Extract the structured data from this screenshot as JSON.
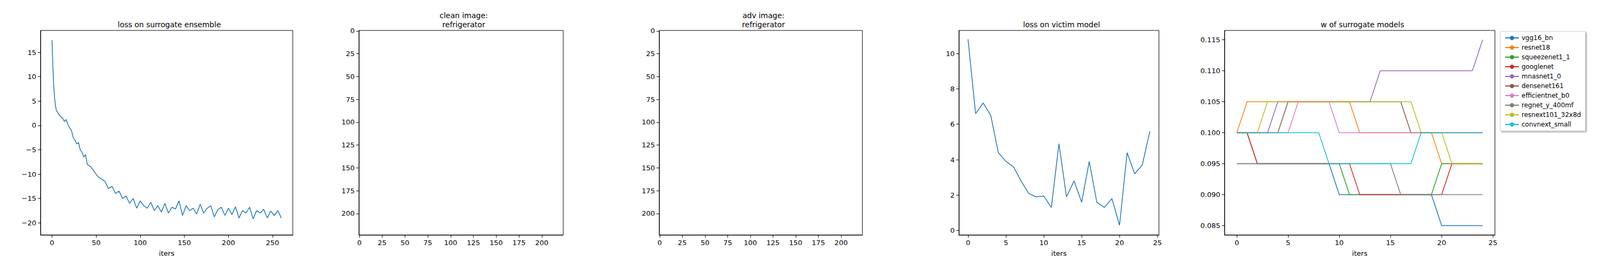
{
  "chart_data": [
    {
      "type": "line",
      "title": "loss on surrogate ensemble",
      "x_label": "iters",
      "x": [
        0,
        1,
        2,
        3,
        4,
        5,
        6,
        8,
        10,
        12,
        14,
        16,
        18,
        20,
        22,
        24,
        26,
        28,
        30,
        32,
        34,
        36,
        38,
        40,
        44,
        48,
        52,
        56,
        60,
        64,
        68,
        72,
        76,
        80,
        84,
        88,
        92,
        96,
        100,
        104,
        108,
        112,
        116,
        120,
        124,
        128,
        132,
        136,
        140,
        144,
        148,
        152,
        156,
        160,
        164,
        168,
        172,
        176,
        180,
        184,
        188,
        192,
        196,
        200,
        204,
        208,
        212,
        216,
        220,
        224,
        228,
        232,
        236,
        240,
        244,
        248,
        252,
        256,
        260
      ],
      "values": [
        17.5,
        12,
        8,
        5.5,
        4,
        3,
        2.8,
        2.2,
        1.8,
        1.5,
        0.8,
        1.2,
        0.2,
        -0.5,
        -1,
        -2.5,
        -3,
        -3.8,
        -3.5,
        -5,
        -5.5,
        -6.5,
        -6,
        -8,
        -8.5,
        -9.5,
        -10.5,
        -11,
        -11.5,
        -13,
        -12.5,
        -14,
        -13.5,
        -15,
        -14.5,
        -16,
        -15,
        -17,
        -15.5,
        -16.5,
        -17,
        -15.8,
        -17.5,
        -16.5,
        -17.8,
        -16,
        -18,
        -16.8,
        -17.2,
        -15.5,
        -18.5,
        -16.5,
        -17.5,
        -17,
        -18.2,
        -16.2,
        -18,
        -17,
        -16.5,
        -18.8,
        -17.3,
        -16.8,
        -18.5,
        -17,
        -18.3,
        -16.7,
        -19,
        -17.5,
        -18,
        -16.8,
        -19.2,
        -17.5,
        -18,
        -17.2,
        -19,
        -17.6,
        -18.5,
        -17.5,
        -19
      ],
      "color": "#1f77b4",
      "xlim": [
        -13,
        273
      ],
      "xticks": [
        0,
        50,
        100,
        150,
        200,
        250
      ],
      "ylim": [
        -22.5,
        19.5
      ],
      "yticks": [
        {
          "value": -20,
          "label": "−20"
        },
        {
          "value": -15,
          "label": "−15"
        },
        {
          "value": -10,
          "label": "−10"
        },
        {
          "value": -5,
          "label": "−5"
        },
        0,
        5,
        10,
        15
      ],
      "grid": false
    },
    {
      "type": "image",
      "title": "clean image:\nrefrigerator",
      "xlim": [
        -0.5,
        223.5
      ],
      "xticks": [
        0,
        25,
        50,
        75,
        100,
        125,
        150,
        175,
        200
      ],
      "ylim": [
        223.5,
        -0.5
      ],
      "yticks": [
        0,
        25,
        50,
        75,
        100,
        125,
        150,
        175,
        200
      ],
      "grid": false
    },
    {
      "type": "image",
      "title": "adv image:\nrefrigerator",
      "xlim": [
        -0.5,
        223.5
      ],
      "xticks": [
        0,
        25,
        50,
        75,
        100,
        125,
        150,
        175,
        200
      ],
      "ylim": [
        223.5,
        -0.5
      ],
      "yticks": [
        0,
        25,
        50,
        75,
        100,
        125,
        150,
        175,
        200
      ],
      "grid": false
    },
    {
      "type": "line",
      "title": "loss on victim model",
      "x_label": "iters",
      "x": [
        0,
        1,
        2,
        3,
        4,
        5,
        6,
        7,
        8,
        9,
        10,
        11,
        12,
        13,
        14,
        15,
        16,
        17,
        18,
        19,
        20,
        21,
        22,
        23,
        24
      ],
      "values": [
        10.8,
        6.6,
        7.2,
        6.5,
        4.4,
        3.9,
        3.6,
        2.8,
        2.1,
        1.9,
        1.95,
        1.3,
        4.9,
        1.9,
        2.8,
        1.6,
        3.9,
        1.6,
        1.3,
        1.8,
        0.3,
        4.4,
        3.2,
        3.7,
        5.6
      ],
      "color": "#1f77b4",
      "xlim": [
        -1.2,
        25.2
      ],
      "xticks": [
        0,
        5,
        10,
        15,
        20,
        25
      ],
      "ylim": [
        -0.25,
        11.3
      ],
      "yticks": [
        0,
        2,
        4,
        6,
        8,
        10
      ],
      "grid": false
    },
    {
      "type": "line",
      "title": "w of surrogate models",
      "x_label": "iters",
      "x": [
        0,
        1,
        2,
        3,
        4,
        5,
        6,
        7,
        8,
        9,
        10,
        11,
        12,
        13,
        14,
        15,
        16,
        17,
        18,
        19,
        20,
        21,
        22,
        23,
        24
      ],
      "series": [
        {
          "name": "vgg16_bn",
          "color": "#1f77b4",
          "values": [
            0.095,
            0.095,
            0.095,
            0.095,
            0.095,
            0.095,
            0.095,
            0.095,
            0.095,
            0.095,
            0.09,
            0.09,
            0.09,
            0.09,
            0.09,
            0.09,
            0.09,
            0.09,
            0.09,
            0.09,
            0.085,
            0.085,
            0.085,
            0.085,
            0.085
          ]
        },
        {
          "name": "resnet18",
          "color": "#ff7f0e",
          "values": [
            0.1,
            0.105,
            0.105,
            0.105,
            0.105,
            0.105,
            0.105,
            0.105,
            0.105,
            0.105,
            0.105,
            0.105,
            0.1,
            0.1,
            0.1,
            0.1,
            0.1,
            0.1,
            0.1,
            0.1,
            0.095,
            0.095,
            0.095,
            0.095,
            0.095
          ]
        },
        {
          "name": "squeezenet1_1",
          "color": "#2ca02c",
          "values": [
            0.1,
            0.1,
            0.095,
            0.095,
            0.095,
            0.095,
            0.095,
            0.095,
            0.095,
            0.095,
            0.095,
            0.09,
            0.09,
            0.09,
            0.09,
            0.09,
            0.09,
            0.09,
            0.09,
            0.09,
            0.095,
            0.095,
            0.095,
            0.095,
            0.095
          ]
        },
        {
          "name": "googlenet",
          "color": "#d62728",
          "values": [
            0.1,
            0.1,
            0.095,
            0.095,
            0.095,
            0.095,
            0.095,
            0.095,
            0.095,
            0.095,
            0.095,
            0.095,
            0.09,
            0.09,
            0.09,
            0.09,
            0.09,
            0.09,
            0.09,
            0.09,
            0.09,
            0.095,
            0.095,
            0.095,
            0.095
          ]
        },
        {
          "name": "mnasnet1_0",
          "color": "#9467bd",
          "values": [
            0.1,
            0.1,
            0.1,
            0.1,
            0.105,
            0.105,
            0.105,
            0.105,
            0.105,
            0.105,
            0.105,
            0.105,
            0.105,
            0.105,
            0.11,
            0.11,
            0.11,
            0.11,
            0.11,
            0.11,
            0.11,
            0.11,
            0.11,
            0.11,
            0.115
          ]
        },
        {
          "name": "densenet161",
          "color": "#8c564b",
          "values": [
            0.1,
            0.1,
            0.1,
            0.1,
            0.1,
            0.105,
            0.105,
            0.105,
            0.105,
            0.105,
            0.105,
            0.105,
            0.105,
            0.105,
            0.105,
            0.105,
            0.105,
            0.1,
            0.1,
            0.1,
            0.1,
            0.1,
            0.1,
            0.1,
            0.1
          ]
        },
        {
          "name": "efficientnet_b0",
          "color": "#e377c2",
          "values": [
            0.1,
            0.1,
            0.1,
            0.1,
            0.1,
            0.1,
            0.105,
            0.105,
            0.105,
            0.105,
            0.1,
            0.1,
            0.1,
            0.1,
            0.1,
            0.1,
            0.1,
            0.1,
            0.1,
            0.1,
            0.1,
            0.1,
            0.1,
            0.1,
            0.1
          ]
        },
        {
          "name": "regnet_y_400mf",
          "color": "#7f7f7f",
          "values": [
            0.095,
            0.095,
            0.095,
            0.095,
            0.095,
            0.095,
            0.095,
            0.095,
            0.095,
            0.095,
            0.095,
            0.095,
            0.095,
            0.095,
            0.095,
            0.095,
            0.09,
            0.09,
            0.09,
            0.09,
            0.09,
            0.09,
            0.09,
            0.09,
            0.09
          ]
        },
        {
          "name": "resnext101_32x8d",
          "color": "#bcbd22",
          "values": [
            0.1,
            0.1,
            0.1,
            0.105,
            0.105,
            0.105,
            0.105,
            0.105,
            0.105,
            0.105,
            0.105,
            0.105,
            0.105,
            0.105,
            0.105,
            0.105,
            0.105,
            0.105,
            0.1,
            0.1,
            0.1,
            0.095,
            0.095,
            0.095,
            0.095
          ]
        },
        {
          "name": "convnext_small",
          "color": "#17becf",
          "values": [
            0.1,
            0.1,
            0.1,
            0.1,
            0.1,
            0.1,
            0.1,
            0.1,
            0.1,
            0.095,
            0.095,
            0.095,
            0.095,
            0.095,
            0.095,
            0.095,
            0.095,
            0.095,
            0.1,
            0.1,
            0.1,
            0.1,
            0.1,
            0.1,
            0.1
          ]
        }
      ],
      "xlim": [
        -1.2,
        25.2
      ],
      "xticks": [
        0,
        5,
        10,
        15,
        20,
        25
      ],
      "ylim": [
        0.0835,
        0.1165
      ],
      "yticks": [
        0.085,
        {
          "value": 0.09,
          "label": "0.090"
        },
        0.095,
        {
          "value": 0.1,
          "label": "0.100"
        },
        0.105,
        {
          "value": 0.11,
          "label": "0.110"
        },
        0.115
      ],
      "grid": false,
      "legend": "right"
    }
  ]
}
